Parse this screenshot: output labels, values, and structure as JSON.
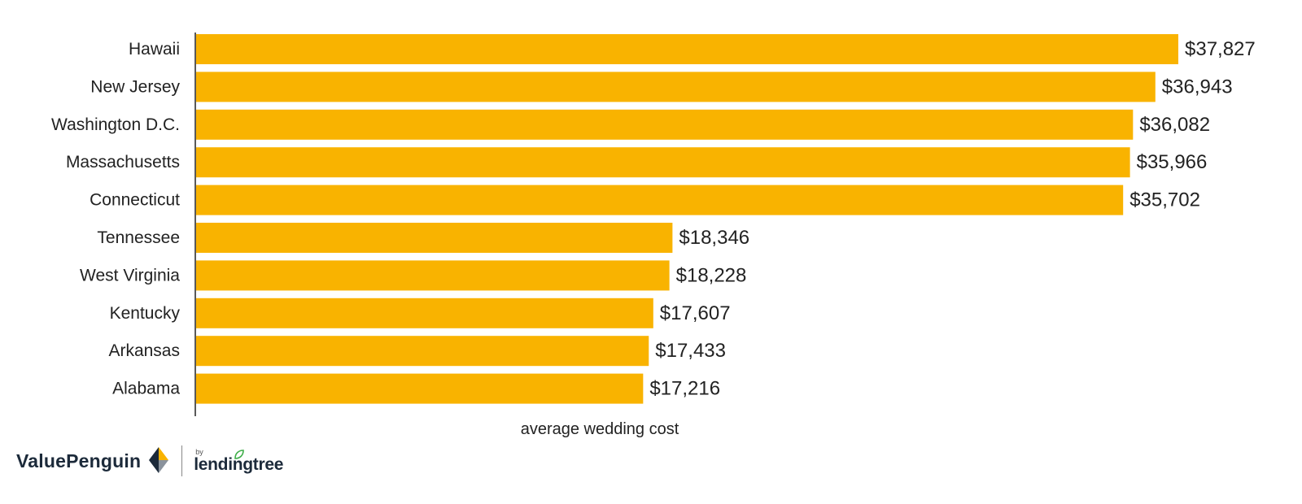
{
  "chart_data": {
    "type": "bar",
    "orientation": "horizontal",
    "categories": [
      "Hawaii",
      "New Jersey",
      "Washington D.C.",
      "Massachusetts",
      "Connecticut",
      "Tennessee",
      "West Virginia",
      "Kentucky",
      "Arkansas",
      "Alabama"
    ],
    "values": [
      37827,
      36943,
      36082,
      35966,
      35702,
      18346,
      18228,
      17607,
      17433,
      17216
    ],
    "value_labels": [
      "$37,827",
      "$36,943",
      "$36,082",
      "$35,966",
      "$35,702",
      "$18,346",
      "$18,228",
      "$17,607",
      "$17,433",
      "$17,216"
    ],
    "xlabel": "average wedding cost",
    "ylabel": "",
    "xlim": [
      0,
      37827
    ],
    "grid": false,
    "bar_color": "#F9B300"
  },
  "branding": {
    "name": "ValuePenguin",
    "by": "by",
    "partner": "lendingtree"
  },
  "colors": {
    "logo_dark": "#1c2a3a",
    "logo_accent": "#F9B300",
    "leaf_green": "#3fae49"
  }
}
